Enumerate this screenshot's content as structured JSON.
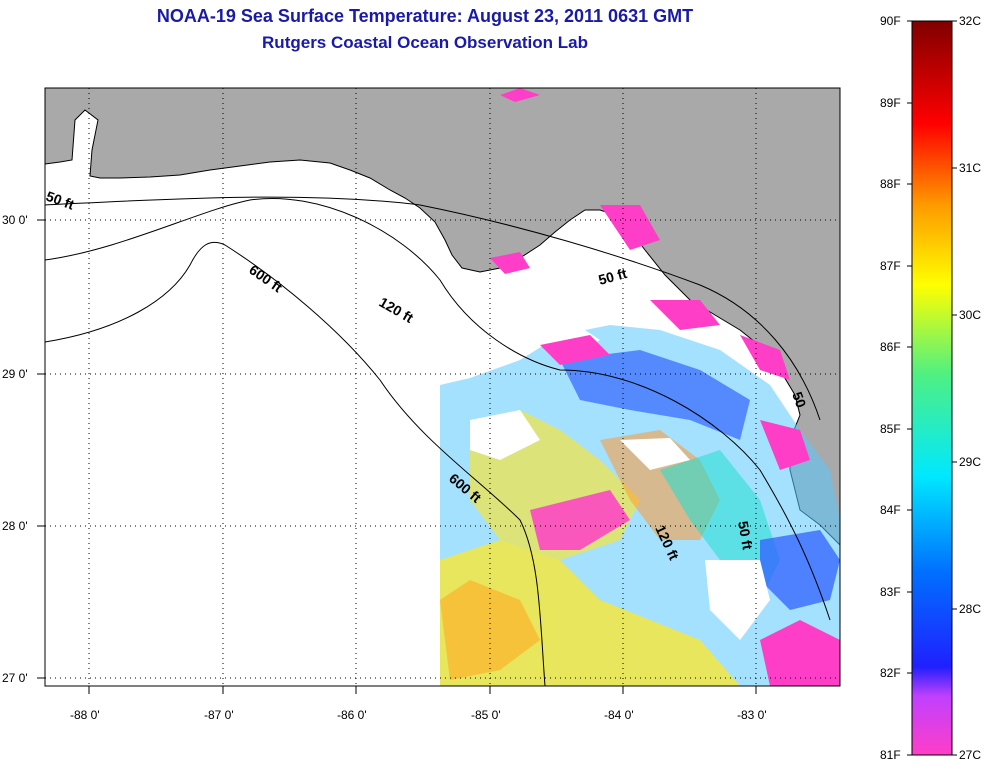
{
  "title": {
    "line1": "NOAA-19 Sea Surface Temperature:  August 23, 2011 0631 GMT",
    "line2": "Rutgers Coastal Ocean Observation Lab"
  },
  "axes": {
    "lon_labels": [
      "-88 0'",
      "-87 0'",
      "-86 0'",
      "-85 0'",
      "-84 0'",
      "-83 0'"
    ],
    "lat_labels": [
      "30 0'",
      "29 0'",
      "28 0'",
      "27 0'"
    ]
  },
  "contours": {
    "labels": [
      "50 ft",
      "600 ft",
      "120 ft",
      "50 ft",
      "600 ft",
      "120 ft",
      "50 ft",
      "50"
    ]
  },
  "colorbar": {
    "fahrenheit": [
      "90F",
      "89F",
      "88F",
      "87F",
      "86F",
      "85F",
      "84F",
      "83F",
      "82F",
      "81F"
    ],
    "celsius": [
      "32C",
      "31C",
      "30C",
      "29C",
      "28C",
      "27C"
    ]
  },
  "colors": {
    "title": "#1a1aa8",
    "land": "#a9a9a9",
    "ocean": "#ffffff"
  }
}
